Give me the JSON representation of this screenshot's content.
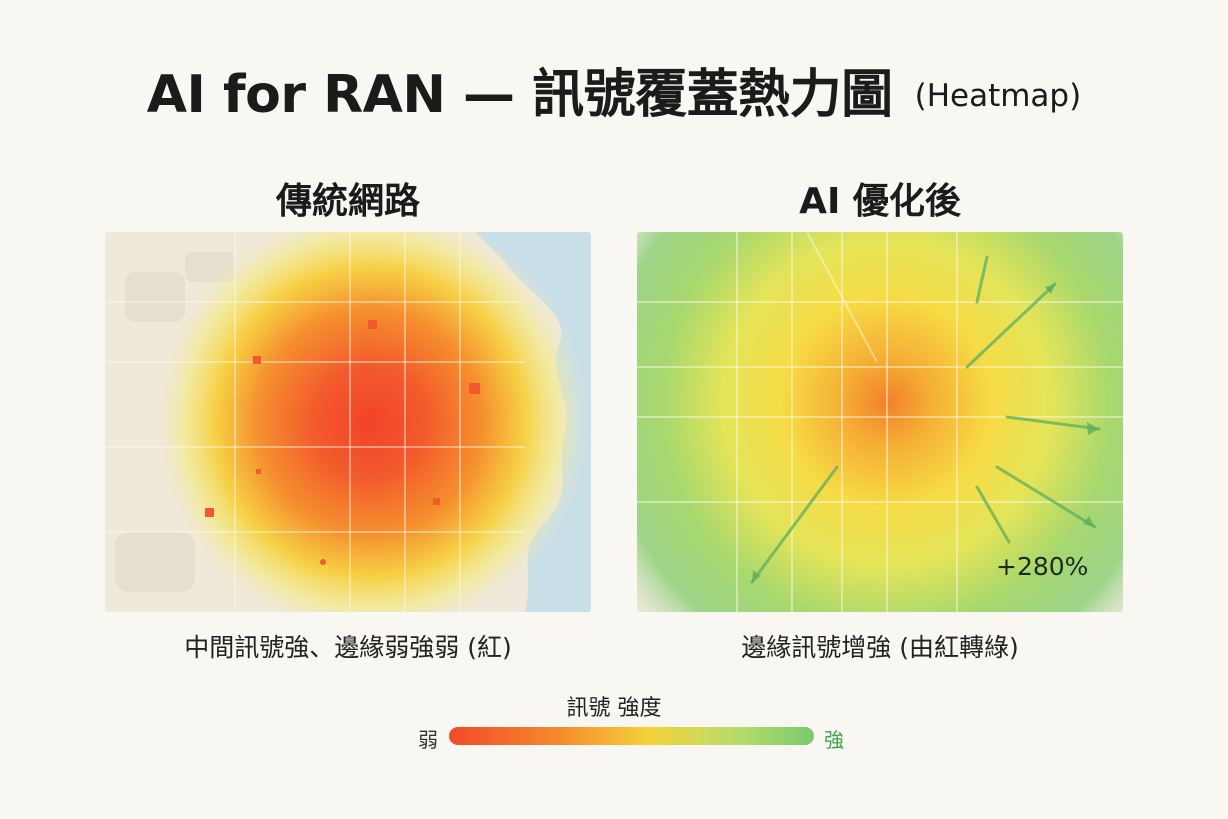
{
  "header": {
    "title": "AI for RAN — 訊號覆蓋熱力圖",
    "subtitle": "(Heatmap)"
  },
  "panels": [
    {
      "heading": "傳統網路",
      "caption": "中間訊號強、邊緣弱強弱 (紅)",
      "dominant_color": "#f04a2a"
    },
    {
      "heading": "AI 優化後",
      "caption": "邊緣訊號增強 (由紅轉綠)",
      "gain_label": "+280%",
      "dominant_color": "#7acb6c"
    }
  ],
  "legend": {
    "title": "訊號 強度",
    "low_label": "弱",
    "high_label": "強",
    "colors": [
      "#f04a2a",
      "#f58a2c",
      "#f5d23a",
      "#b9dc6a",
      "#7acb6c"
    ]
  }
}
